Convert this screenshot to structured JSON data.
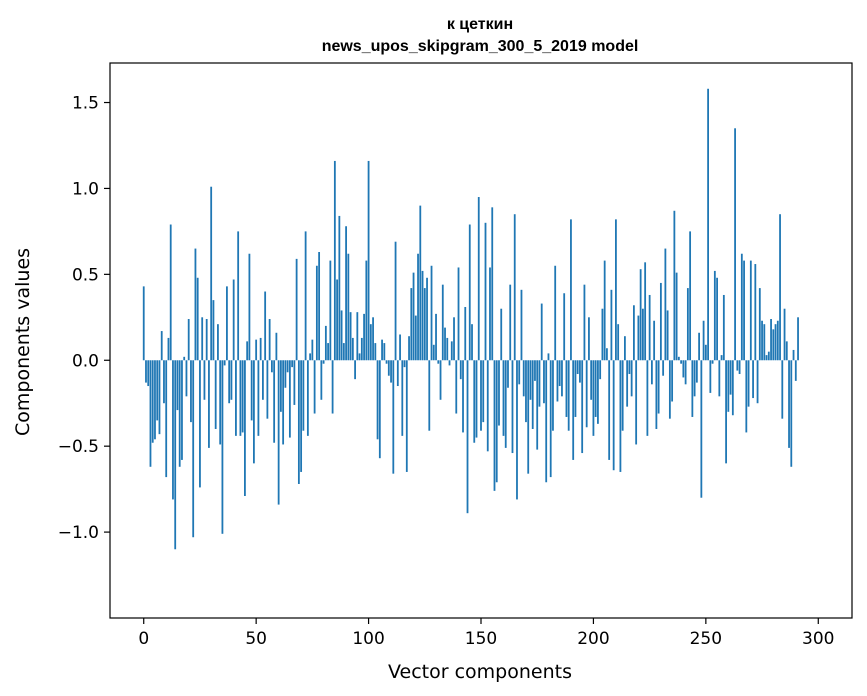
{
  "chart_data": {
    "type": "bar",
    "title": "к цеткин",
    "subtitle": "news_upos_skipgram_300_5_2019 model",
    "xlabel": "Vector components",
    "ylabel": "Components values",
    "xlim": [
      -15,
      315
    ],
    "ylim": [
      -1.5,
      1.73
    ],
    "xticks": [
      0,
      50,
      100,
      150,
      200,
      250,
      300
    ],
    "xtick_labels": [
      "0",
      "50",
      "100",
      "150",
      "200",
      "250",
      "300"
    ],
    "yticks": [
      -1.0,
      -0.5,
      0.0,
      0.5,
      1.0,
      1.5
    ],
    "ytick_labels": [
      "−1.0",
      "−0.5",
      "0.0",
      "0.5",
      "1.0",
      "1.5"
    ],
    "bar_color": "#1f77b4",
    "values": [
      0.43,
      -0.13,
      -0.15,
      -0.62,
      -0.48,
      -0.46,
      -0.35,
      -0.43,
      0.17,
      -0.25,
      -0.68,
      0.13,
      0.79,
      -0.81,
      -1.1,
      -0.29,
      -0.62,
      -0.58,
      0.02,
      -0.21,
      0.24,
      -0.36,
      -1.03,
      0.65,
      0.48,
      -0.74,
      0.25,
      -0.23,
      0.24,
      -0.51,
      1.01,
      0.35,
      -0.4,
      0.21,
      -0.49,
      -1.01,
      -0.03,
      0.43,
      -0.25,
      -0.23,
      0.47,
      -0.44,
      0.75,
      -0.44,
      -0.42,
      -0.79,
      0.11,
      0.62,
      -0.35,
      -0.6,
      0.12,
      -0.44,
      0.13,
      -0.23,
      0.4,
      -0.34,
      0.24,
      -0.07,
      -0.48,
      0.16,
      -0.84,
      -0.3,
      -0.49,
      -0.16,
      -0.07,
      -0.45,
      -0.04,
      -0.26,
      0.59,
      -0.72,
      -0.65,
      -0.41,
      0.75,
      -0.44,
      0.04,
      0.12,
      -0.31,
      0.55,
      0.63,
      -0.23,
      -0.02,
      0.2,
      0.1,
      0.58,
      -0.31,
      1.16,
      0.47,
      0.84,
      0.29,
      0.1,
      0.78,
      0.62,
      0.28,
      0.13,
      -0.11,
      0.28,
      0.04,
      0.13,
      0.27,
      0.58,
      1.16,
      0.21,
      0.25,
      0.1,
      -0.46,
      -0.57,
      0.12,
      0.1,
      -0.02,
      -0.09,
      -0.13,
      -0.66,
      0.69,
      -0.15,
      0.15,
      -0.44,
      -0.04,
      -0.65,
      0.14,
      0.42,
      0.51,
      0.26,
      0.62,
      0.9,
      0.52,
      0.42,
      0.48,
      -0.41,
      0.55,
      0.09,
      0.27,
      -0.02,
      -0.23,
      0.44,
      0.19,
      0.13,
      -0.03,
      0.11,
      0.25,
      -0.31,
      0.54,
      -0.11,
      -0.42,
      0.31,
      -0.89,
      0.79,
      0.21,
      -0.48,
      -0.45,
      0.95,
      -0.41,
      -0.36,
      0.8,
      -0.53,
      0.54,
      0.89,
      -0.76,
      -0.71,
      -0.38,
      0.3,
      -0.44,
      -0.51,
      -0.16,
      0.44,
      -0.54,
      0.85,
      -0.81,
      -0.14,
      0.41,
      -0.21,
      -0.36,
      -0.66,
      -0.23,
      -0.4,
      -0.12,
      -0.52,
      -0.27,
      0.33,
      -0.25,
      -0.71,
      0.04,
      -0.68,
      -0.41,
      0.55,
      -0.24,
      -0.15,
      -0.21,
      0.39,
      -0.33,
      -0.41,
      0.82,
      -0.58,
      -0.33,
      -0.08,
      -0.13,
      -0.54,
      0.44,
      -0.39,
      0.25,
      -0.23,
      -0.44,
      -0.33,
      -0.37,
      -0.11,
      0.3,
      0.58,
      0.07,
      -0.58,
      0.41,
      -0.64,
      0.82,
      0.21,
      -0.65,
      -0.41,
      0.14,
      -0.27,
      -0.08,
      -0.21,
      0.32,
      -0.49,
      0.26,
      0.53,
      0.3,
      0.57,
      -0.44,
      0.38,
      -0.14,
      0.23,
      -0.4,
      -0.31,
      0.45,
      -0.09,
      0.65,
      0.29,
      -0.34,
      -0.24,
      0.87,
      0.51,
      0.02,
      -0.02,
      -0.1,
      -0.14,
      0.42,
      0.75,
      -0.33,
      -0.21,
      -0.13,
      0.16,
      -0.8,
      0.23,
      0.09,
      1.58,
      -0.19,
      -0.02,
      0.52,
      0.48,
      -0.21,
      0.03,
      0.38,
      -0.6,
      -0.3,
      -0.2,
      -0.32,
      1.35,
      -0.06,
      -0.08,
      0.62,
      0.58,
      -0.42,
      -0.27,
      0.58,
      -0.22,
      0.56,
      -0.25,
      0.42,
      0.23,
      0.21,
      0.03,
      0.05,
      0.24,
      0.18,
      0.21,
      0.23,
      0.85,
      -0.34,
      0.3,
      0.11,
      -0.51,
      -0.62,
      0.06,
      -0.12,
      0.25
    ]
  }
}
